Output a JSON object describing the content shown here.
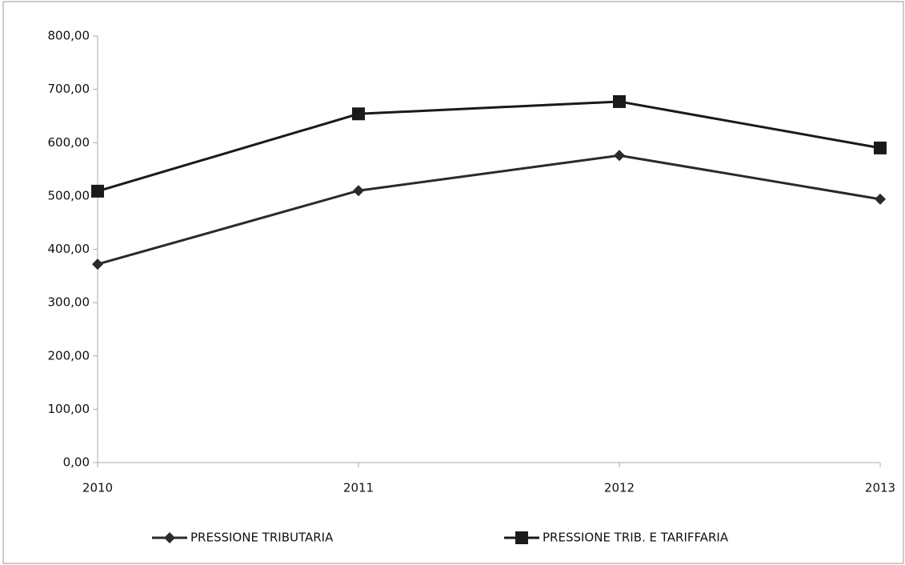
{
  "chart_data": {
    "type": "line",
    "categories": [
      "2010",
      "2011",
      "2012",
      "2013"
    ],
    "series": [
      {
        "name": "PRESSIONE TRIBUTARIA",
        "color": "#2a2a2a",
        "marker": "diamond",
        "values": [
          372,
          510,
          576,
          494
        ]
      },
      {
        "name": "PRESSIONE TRIB. E TARIFFARIA",
        "color": "#1a1a1a",
        "marker": "square",
        "values": [
          509,
          654,
          677,
          590
        ]
      }
    ],
    "ylim": [
      0,
      800
    ],
    "yticks": [
      {
        "value": 0,
        "label": "0,00"
      },
      {
        "value": 100,
        "label": "100,00"
      },
      {
        "value": 200,
        "label": "200,00"
      },
      {
        "value": 300,
        "label": "300,00"
      },
      {
        "value": 400,
        "label": "400,00"
      },
      {
        "value": 500,
        "label": "500,00"
      },
      {
        "value": 600,
        "label": "600,00"
      },
      {
        "value": 700,
        "label": "700,00"
      },
      {
        "value": 800,
        "label": "800,00"
      }
    ],
    "legend": "bottom"
  }
}
